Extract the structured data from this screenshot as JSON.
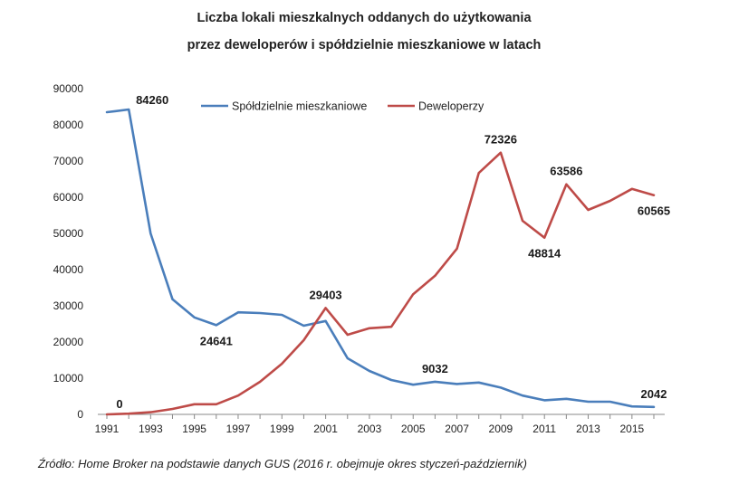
{
  "chart_data": {
    "type": "line",
    "title": [
      "Liczba lokali mieszkalnych oddanych do użytkowania",
      "przez deweloperów i spółdzielnie mieszkaniowe w latach"
    ],
    "x": [
      1991,
      1992,
      1993,
      1994,
      1995,
      1996,
      1997,
      1998,
      1999,
      2000,
      2001,
      2002,
      2003,
      2004,
      2005,
      2006,
      2007,
      2008,
      2009,
      2010,
      2011,
      2012,
      2013,
      2014,
      2015,
      2016
    ],
    "x_ticks": [
      1991,
      1993,
      1995,
      1997,
      1999,
      2001,
      2003,
      2005,
      2007,
      2009,
      2011,
      2013,
      2015
    ],
    "y_ticks": [
      0,
      10000,
      20000,
      30000,
      40000,
      50000,
      60000,
      70000,
      80000,
      90000
    ],
    "xlim": [
      1991,
      2016
    ],
    "ylim": [
      0,
      90000
    ],
    "grid": false,
    "legend_placement": "top",
    "series": [
      {
        "name": "Spółdzielnie mieszkaniowe",
        "color": "#4a7ebb",
        "values": [
          83500,
          84260,
          50000,
          31800,
          26800,
          24641,
          28200,
          28000,
          27500,
          24500,
          25800,
          15500,
          12000,
          9500,
          8200,
          9032,
          8400,
          8800,
          7400,
          5200,
          3900,
          4300,
          3500,
          3500,
          2200,
          2042
        ]
      },
      {
        "name": "Deweloperzy",
        "color": "#be4b48",
        "values": [
          0,
          200,
          600,
          1500,
          2800,
          2800,
          5200,
          9000,
          14000,
          20500,
          29403,
          22000,
          23800,
          24200,
          33200,
          38300,
          45800,
          66700,
          72326,
          53500,
          48814,
          63586,
          56500,
          59000,
          62300,
          60565
        ]
      }
    ],
    "data_labels": [
      {
        "series": 0,
        "index": 1,
        "text": "84260",
        "pos": "right-top"
      },
      {
        "series": 0,
        "index": 5,
        "text": "24641",
        "pos": "below"
      },
      {
        "series": 0,
        "index": 15,
        "text": "9032",
        "pos": "above"
      },
      {
        "series": 0,
        "index": 25,
        "text": "2042",
        "pos": "above"
      },
      {
        "series": 1,
        "index": 0,
        "text": "0",
        "pos": "above-right"
      },
      {
        "series": 1,
        "index": 10,
        "text": "29403",
        "pos": "above"
      },
      {
        "series": 1,
        "index": 18,
        "text": "72326",
        "pos": "above"
      },
      {
        "series": 1,
        "index": 20,
        "text": "48814",
        "pos": "below"
      },
      {
        "series": 1,
        "index": 21,
        "text": "63586",
        "pos": "above"
      },
      {
        "series": 1,
        "index": 25,
        "text": "60565",
        "pos": "below"
      }
    ],
    "source": "Źródło: Home Broker na podstawie danych GUS (2016 r. obejmuje okres styczeń-październik)"
  }
}
